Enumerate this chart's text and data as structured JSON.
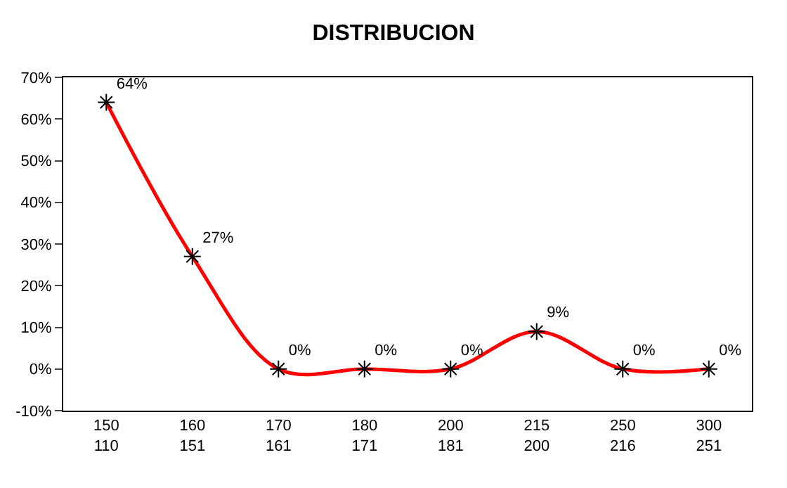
{
  "chart_data": {
    "type": "line",
    "title": "DISTRIBUCION",
    "categories": [
      "150\n110",
      "160\n151",
      "170\n161",
      "180\n171",
      "200\n181",
      "215\n200",
      "250\n216",
      "300\n251"
    ],
    "series": [
      {
        "color": "#ff0000",
        "values": [
          64,
          27,
          0,
          0,
          0,
          9,
          0,
          0
        ],
        "value_labels": [
          "64%",
          "27%",
          "0%",
          "0%",
          "0%",
          "9%",
          "0%",
          "0%"
        ]
      }
    ],
    "ylim": [
      -10,
      70
    ],
    "yticks": [
      {
        "value": -10,
        "label": "-10%"
      },
      {
        "value": 0,
        "label": "0%"
      },
      {
        "value": 10,
        "label": "10%"
      },
      {
        "value": 20,
        "label": "20%"
      },
      {
        "value": 30,
        "label": "30%"
      },
      {
        "value": 40,
        "label": "40%"
      },
      {
        "value": 50,
        "label": "50%"
      },
      {
        "value": 60,
        "label": "60%"
      },
      {
        "value": 70,
        "label": "70%"
      }
    ],
    "legend": false,
    "marker": "cross",
    "line_style": "solid"
  }
}
